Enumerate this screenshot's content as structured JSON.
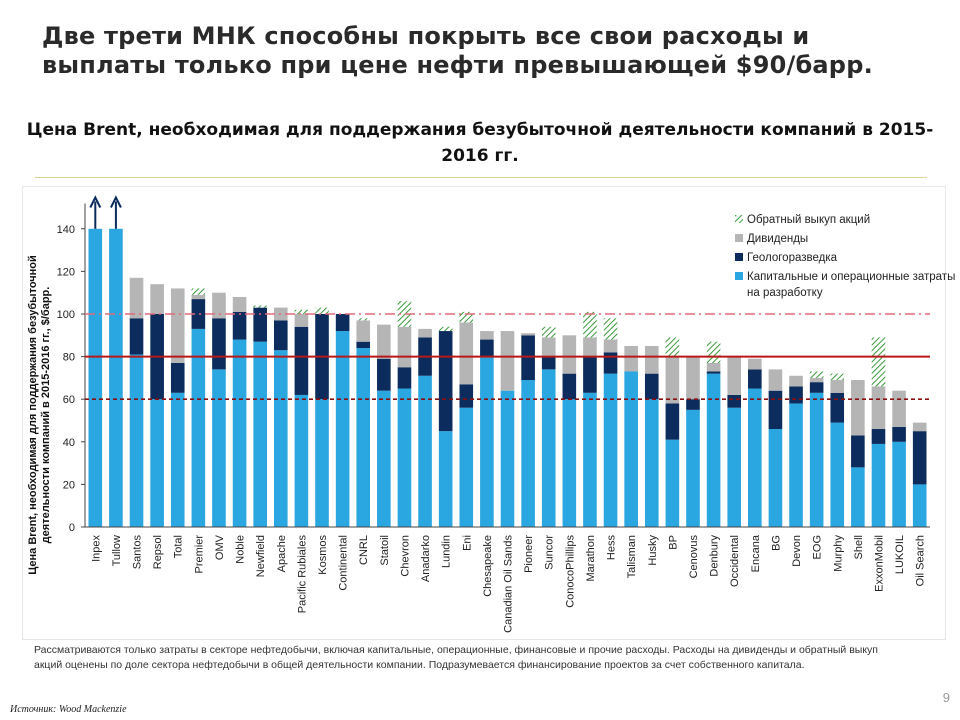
{
  "slide": {
    "title": "Две трети МНК способны покрыть все свои расходы и выплаты только при цене нефти превышающей $90/барр.",
    "chart_title": "Цена Brent, необходимая для поддержания безубыточной деятельности компаний в 2015-2016 гг.",
    "footnote": "Рассматриваются только затраты в секторе нефтедобычи, включая капитальные, операционные, финансовые и прочие расходы. Расходы на дивиденды и обратный выкуп акций оценены по доле сектора нефтедобычи в общей деятельности компании. Подразумевается финансирование проектов за счет собственного капитала.",
    "source": "Источник: Wood Mackenzie",
    "page_number": "9"
  },
  "colors": {
    "capex": "#2aa6e0",
    "exploration": "#0b2c5c",
    "dividends": "#b5b5b5",
    "buyback": "#3a9a3a",
    "line_100": "#e26a7a",
    "line_80": "#b81818",
    "line_60": "#8a1010"
  },
  "chart_data": {
    "type": "bar",
    "stacked": true,
    "ylabel": "Цена Brent, необходимая для поддержания безубыточной деятельности компаний в 2015-2016 гг., $/барр.",
    "ylim": [
      0,
      150
    ],
    "yticks": [
      0,
      20,
      40,
      60,
      80,
      100,
      120,
      140
    ],
    "grid": false,
    "legend_position": "top-right",
    "categories": [
      "Inpex",
      "Tullow",
      "Santos",
      "Repsol",
      "Total",
      "Premier",
      "OMV",
      "Noble",
      "Newfield",
      "Apache",
      "Pacific Rubiales",
      "Kosmos",
      "Continental",
      "CNRL",
      "Statoil",
      "Chevron",
      "Anadarko",
      "Lundin",
      "Eni",
      "Chesapeake",
      "Canadian Oil Sands",
      "Pioneer",
      "Suncor",
      "ConocoPhillips",
      "Marathon",
      "Hess",
      "Talisman",
      "Husky",
      "BP",
      "Cenovus",
      "Denbury",
      "Occidental",
      "Encana",
      "BG",
      "Devon",
      "EOG",
      "Murphy",
      "Shell",
      "ExxonMobil",
      "LUKOIL",
      "Oil Search"
    ],
    "series": [
      {
        "name": "Капитальные и операционные затраты на разработку",
        "key": "capex",
        "values": [
          140,
          140,
          81,
          60,
          63,
          93,
          74,
          88,
          87,
          83,
          62,
          60,
          92,
          84,
          64,
          65,
          71,
          45,
          56,
          80,
          64,
          69,
          74,
          60,
          63,
          72,
          73,
          60,
          41,
          55,
          72,
          56,
          65,
          46,
          58,
          63,
          49,
          28,
          39,
          40,
          20
        ]
      },
      {
        "name": "Геологоразведка",
        "key": "exploration",
        "values": [
          0,
          0,
          17,
          40,
          14,
          14,
          24,
          13,
          16,
          14,
          32,
          40,
          8,
          3,
          15,
          10,
          18,
          47,
          11,
          8,
          0,
          21,
          6,
          12,
          17,
          10,
          0,
          12,
          17,
          5,
          1,
          6,
          9,
          18,
          8,
          5,
          14,
          15,
          7,
          7,
          25
        ]
      },
      {
        "name": "Дивиденды",
        "key": "dividends",
        "values": [
          0,
          0,
          19,
          14,
          35,
          2,
          12,
          7,
          0,
          6,
          6,
          0,
          0,
          10,
          16,
          19,
          4,
          0,
          29,
          4,
          28,
          1,
          9,
          18,
          9,
          6,
          12,
          13,
          22,
          20,
          4,
          18,
          5,
          10,
          5,
          2,
          6,
          26,
          20,
          17,
          4
        ]
      },
      {
        "name": "Обратный выкуп акций",
        "key": "buyback",
        "values": [
          0,
          0,
          0,
          0,
          0,
          3,
          0,
          0,
          1,
          0,
          2,
          3,
          0,
          1,
          0,
          12,
          0,
          2,
          5,
          0,
          0,
          0,
          5,
          0,
          12,
          10,
          0,
          0,
          9,
          0,
          10,
          0,
          0,
          0,
          0,
          3,
          3,
          0,
          23,
          0,
          0
        ]
      }
    ],
    "overflow_arrows": [
      "Inpex",
      "Tullow"
    ],
    "reference_lines": [
      {
        "value": 100,
        "style": "dash-dot",
        "color_key": "line_100"
      },
      {
        "value": 80,
        "style": "solid",
        "color_key": "line_80"
      },
      {
        "value": 60,
        "style": "dashed",
        "color_key": "line_60"
      }
    ],
    "legend_order": [
      "buyback",
      "dividends",
      "exploration",
      "capex"
    ]
  }
}
